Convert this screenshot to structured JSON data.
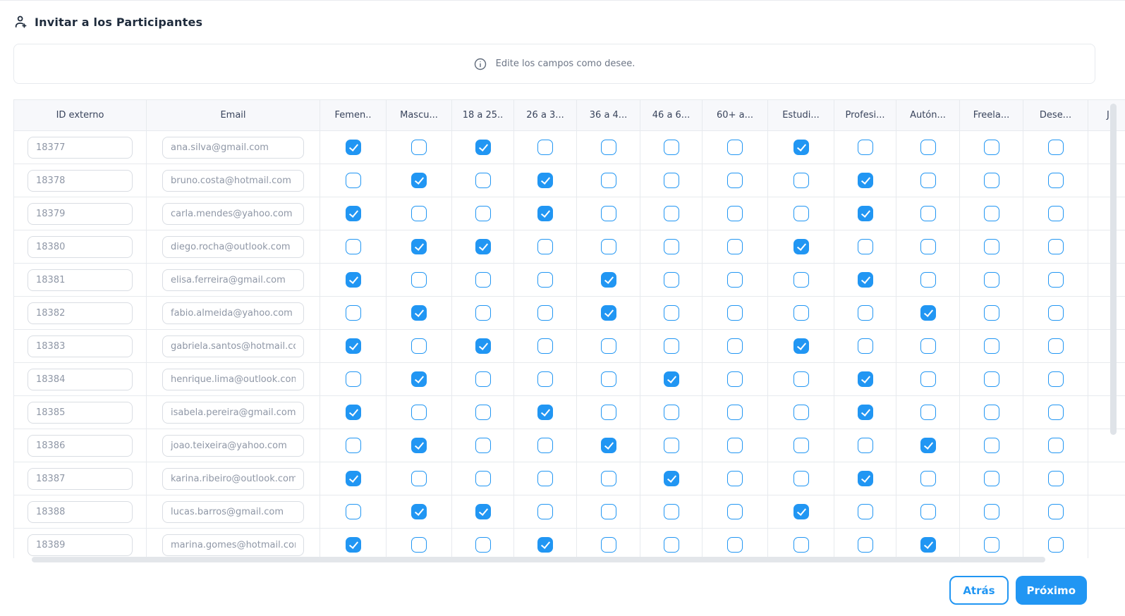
{
  "header": {
    "title": "Invitar a los Participantes"
  },
  "notice": {
    "text": "Edite los campos como desee."
  },
  "table": {
    "id_header": "ID externo",
    "email_header": "Email",
    "check_columns": [
      "Femen..",
      "Mascu...",
      "18 a 25..",
      "26 a 3...",
      "36 a 4...",
      "46 a 6...",
      "60+ a...",
      "Estudi...",
      "Profesi...",
      "Autón...",
      "Freela...",
      "Dese...",
      "Ju"
    ],
    "rows": [
      {
        "external_id": "18377",
        "email": "ana.silva@gmail.com",
        "checks": [
          true,
          false,
          true,
          false,
          false,
          false,
          false,
          true,
          false,
          false,
          false,
          false,
          false
        ]
      },
      {
        "external_id": "18378",
        "email": "bruno.costa@hotmail.com",
        "checks": [
          false,
          true,
          false,
          true,
          false,
          false,
          false,
          false,
          true,
          false,
          false,
          false,
          false
        ]
      },
      {
        "external_id": "18379",
        "email": "carla.mendes@yahoo.com",
        "checks": [
          true,
          false,
          false,
          true,
          false,
          false,
          false,
          false,
          true,
          false,
          false,
          false,
          false
        ]
      },
      {
        "external_id": "18380",
        "email": "diego.rocha@outlook.com",
        "checks": [
          false,
          true,
          true,
          false,
          false,
          false,
          false,
          true,
          false,
          false,
          false,
          false,
          false
        ]
      },
      {
        "external_id": "18381",
        "email": "elisa.ferreira@gmail.com",
        "checks": [
          true,
          false,
          false,
          false,
          true,
          false,
          false,
          false,
          true,
          false,
          false,
          false,
          false
        ]
      },
      {
        "external_id": "18382",
        "email": "fabio.almeida@yahoo.com",
        "checks": [
          false,
          true,
          false,
          false,
          true,
          false,
          false,
          false,
          false,
          true,
          false,
          false,
          false
        ]
      },
      {
        "external_id": "18383",
        "email": "gabriela.santos@hotmail.com",
        "checks": [
          true,
          false,
          true,
          false,
          false,
          false,
          false,
          true,
          false,
          false,
          false,
          false,
          false
        ]
      },
      {
        "external_id": "18384",
        "email": "henrique.lima@outlook.com",
        "checks": [
          false,
          true,
          false,
          false,
          false,
          true,
          false,
          false,
          true,
          false,
          false,
          false,
          false
        ]
      },
      {
        "external_id": "18385",
        "email": "isabela.pereira@gmail.com",
        "checks": [
          true,
          false,
          false,
          true,
          false,
          false,
          false,
          false,
          true,
          false,
          false,
          false,
          false
        ]
      },
      {
        "external_id": "18386",
        "email": "joao.teixeira@yahoo.com",
        "checks": [
          false,
          true,
          false,
          false,
          true,
          false,
          false,
          false,
          false,
          true,
          false,
          false,
          false
        ]
      },
      {
        "external_id": "18387",
        "email": "karina.ribeiro@outlook.com",
        "checks": [
          true,
          false,
          false,
          false,
          false,
          true,
          false,
          false,
          true,
          false,
          false,
          false,
          false
        ]
      },
      {
        "external_id": "18388",
        "email": "lucas.barros@gmail.com",
        "checks": [
          false,
          true,
          true,
          false,
          false,
          false,
          false,
          true,
          false,
          false,
          false,
          false,
          false
        ]
      },
      {
        "external_id": "18389",
        "email": "marina.gomes@hotmail.com",
        "checks": [
          true,
          false,
          false,
          true,
          false,
          false,
          false,
          false,
          false,
          true,
          false,
          false,
          false
        ]
      }
    ]
  },
  "footer": {
    "back_label": "Atrás",
    "next_label": "Próximo"
  },
  "colors": {
    "accent": "#2196f3",
    "title_text": "#1e2b3c",
    "muted_text": "#6d7686",
    "border": "#e7eaee",
    "header_bg": "#f7f8fb"
  }
}
